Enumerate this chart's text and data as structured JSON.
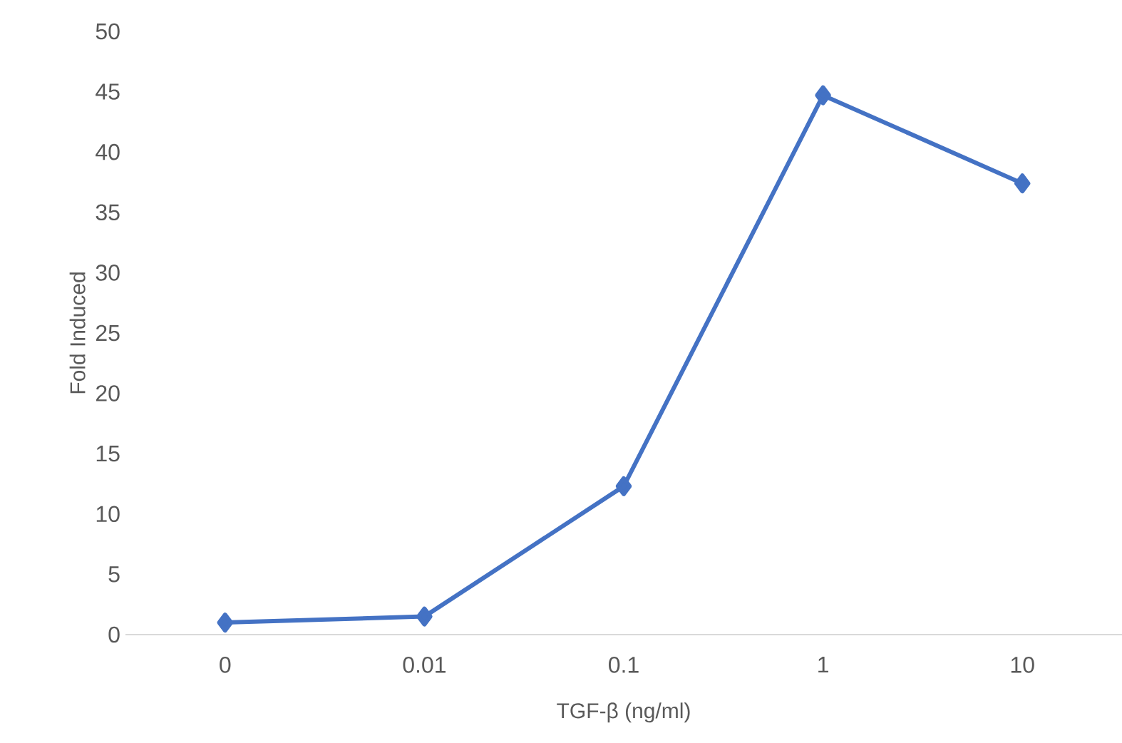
{
  "chart_data": {
    "type": "line",
    "categories": [
      "0",
      "0.01",
      "0.1",
      "1",
      "10"
    ],
    "values": [
      1.0,
      1.5,
      12.3,
      44.7,
      37.4
    ],
    "color": "#4472c4",
    "marker": "diamond",
    "xlabel": "TGF-β (ng/ml)",
    "ylabel": "Fold Induced",
    "ylim": [
      0,
      50
    ],
    "yticks": [
      0,
      5,
      10,
      15,
      20,
      25,
      30,
      35,
      40,
      45,
      50
    ]
  }
}
